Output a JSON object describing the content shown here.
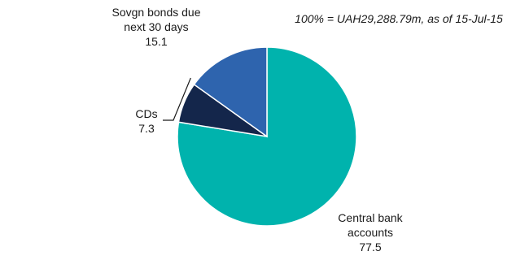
{
  "chart_data": {
    "type": "pie",
    "note": "100% = UAH29,288.79m,   as of 15-Jul-15",
    "slices": [
      {
        "label_lines": [
          "Central bank",
          "accounts"
        ],
        "value": 77.5,
        "value_label": "77.5",
        "color": "#00B3AD"
      },
      {
        "label_lines": [
          "CDs"
        ],
        "value": 7.3,
        "value_label": "7.3",
        "color": "#14264B"
      },
      {
        "label_lines": [
          "Sovgn bonds  due",
          "next 30 days"
        ],
        "value": 15.1,
        "value_label": "15.1",
        "color": "#2E64AE"
      }
    ],
    "legend": "none"
  }
}
